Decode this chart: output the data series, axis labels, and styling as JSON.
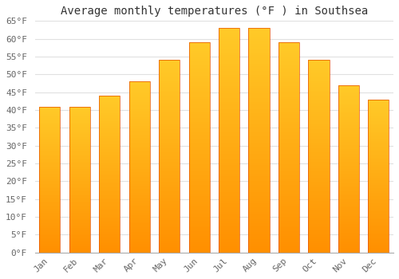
{
  "title": "Average monthly temperatures (°F ) in Southsea",
  "months": [
    "Jan",
    "Feb",
    "Mar",
    "Apr",
    "May",
    "Jun",
    "Jul",
    "Aug",
    "Sep",
    "Oct",
    "Nov",
    "Dec"
  ],
  "values": [
    41,
    41,
    44,
    48,
    54,
    59,
    63,
    63,
    59,
    54,
    47,
    43
  ],
  "bar_color_top": "#FFCA28",
  "bar_color_bottom": "#FF8F00",
  "bar_edge_color": "#E65100",
  "ylim": [
    0,
    65
  ],
  "yticks": [
    0,
    5,
    10,
    15,
    20,
    25,
    30,
    35,
    40,
    45,
    50,
    55,
    60,
    65
  ],
  "ytick_labels": [
    "0°F",
    "5°F",
    "10°F",
    "15°F",
    "20°F",
    "25°F",
    "30°F",
    "35°F",
    "40°F",
    "45°F",
    "50°F",
    "55°F",
    "60°F",
    "65°F"
  ],
  "background_color": "#FFFFFF",
  "grid_color": "#E0E0E0",
  "title_fontsize": 10,
  "tick_fontsize": 8,
  "bar_width": 0.7,
  "num_gradient_steps": 100
}
